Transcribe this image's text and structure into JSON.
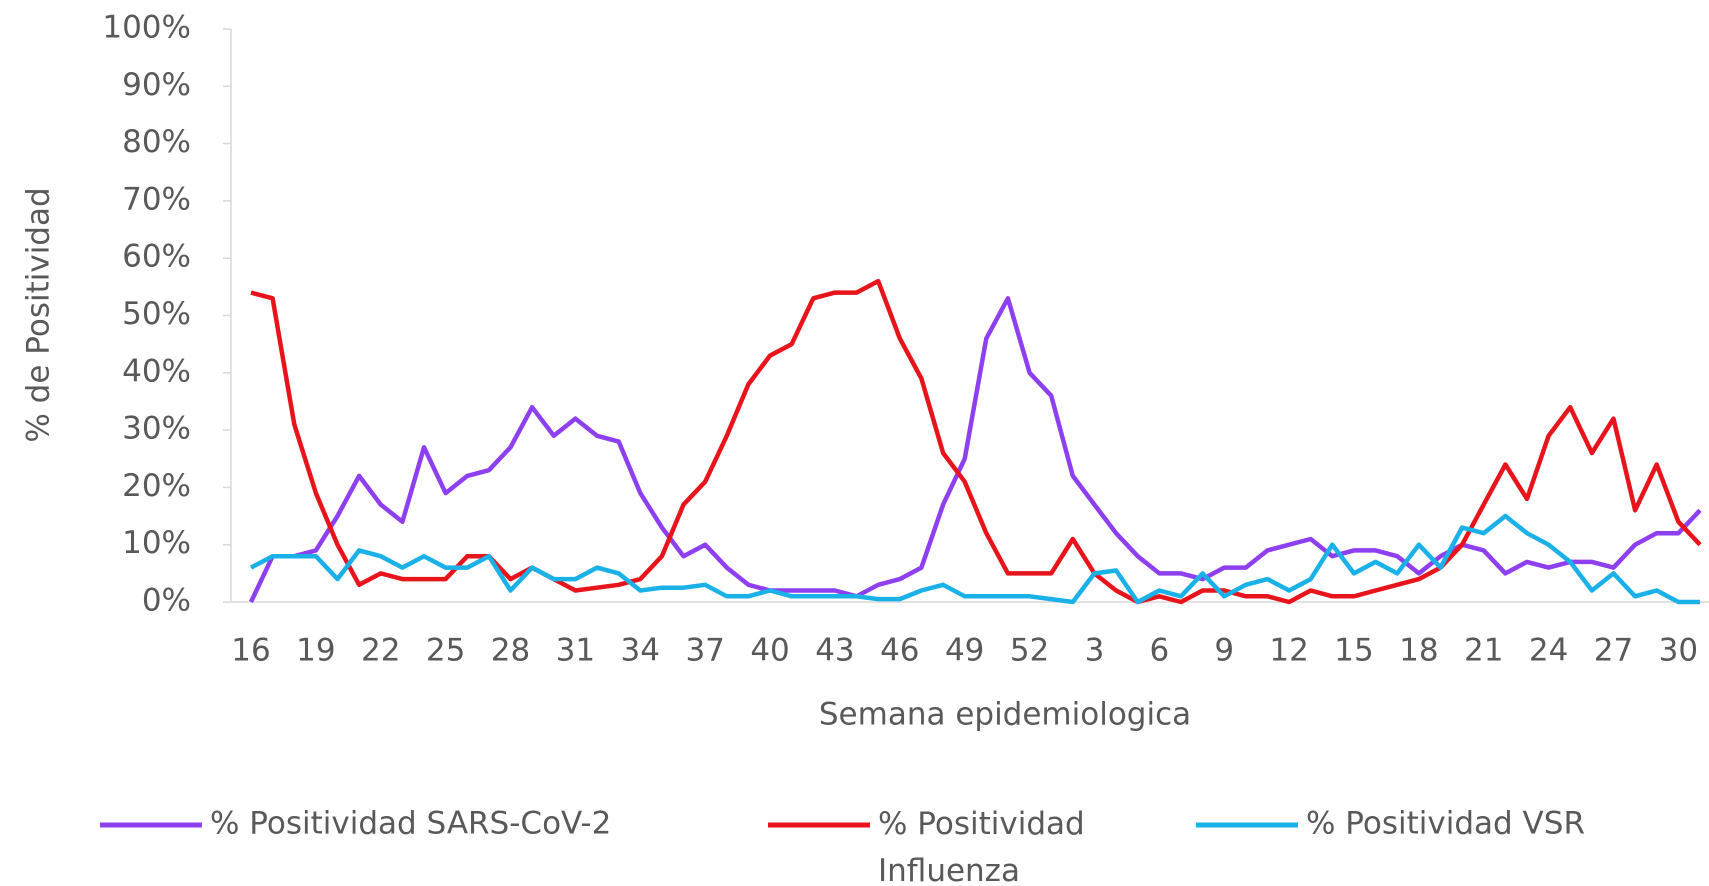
{
  "chart_data": {
    "type": "line",
    "y_label": "% de Positividad",
    "x_label": "Semana epidemiologica",
    "categories": [
      "16",
      null,
      null,
      "19",
      null,
      null,
      "22",
      null,
      null,
      "25",
      null,
      null,
      "28",
      null,
      null,
      "31",
      null,
      null,
      "34",
      null,
      null,
      "37",
      null,
      null,
      "40",
      null,
      null,
      "43",
      null,
      null,
      "46",
      null,
      null,
      "49",
      null,
      null,
      "52",
      null,
      null,
      "3",
      null,
      null,
      "6",
      null,
      null,
      "9",
      null,
      null,
      "12",
      null,
      null,
      "15",
      null,
      null,
      "18",
      null,
      null,
      "21",
      null,
      null,
      "24",
      null,
      null,
      "27",
      null,
      null,
      "30",
      null
    ],
    "series": [
      {
        "name": "% Positividad SARS-CoV-2",
        "color": "#8e3ff0",
        "values": [
          0,
          8,
          8,
          9,
          15,
          22,
          17,
          14,
          27,
          19,
          22,
          23,
          27,
          34,
          29,
          32,
          29,
          28,
          19,
          13,
          8,
          10,
          6,
          3,
          2,
          2,
          2,
          2,
          1,
          3,
          4,
          6,
          17,
          25,
          46,
          53,
          40,
          36,
          22,
          17,
          12,
          8,
          5,
          5,
          4,
          6,
          6,
          9,
          10,
          11,
          8,
          9,
          9,
          8,
          5,
          8,
          10,
          9,
          5,
          7,
          6,
          7,
          7,
          6,
          10,
          12,
          12,
          16
        ]
      },
      {
        "name": "% Positividad Influenza",
        "color": "#e8141c",
        "values": [
          54,
          53,
          31,
          19,
          10,
          3,
          5,
          4,
          4,
          4,
          8,
          8,
          4,
          6,
          4,
          2,
          2.5,
          3,
          4,
          8,
          17,
          21,
          29,
          38,
          43,
          45,
          53,
          54,
          54,
          56,
          46,
          39,
          26,
          21,
          12,
          5,
          5,
          5,
          11,
          5,
          2,
          0,
          1,
          0,
          2,
          2,
          1,
          1,
          0,
          2,
          1,
          1,
          2,
          3,
          4,
          6,
          10,
          17,
          24,
          18,
          29,
          34,
          26,
          32,
          16,
          24,
          14,
          10
        ]
      },
      {
        "name": "% Positividad VSR",
        "color": "#1ab0e8",
        "values": [
          6,
          8,
          8,
          8,
          4,
          9,
          8,
          6,
          8,
          6,
          6,
          8,
          2,
          6,
          4,
          4,
          6,
          5,
          2,
          2.5,
          2.5,
          3,
          1,
          1,
          2,
          1,
          1,
          1,
          1,
          0.5,
          0.5,
          2,
          3,
          1,
          1,
          1,
          1,
          0.5,
          0,
          5,
          5.5,
          0,
          2,
          1,
          5,
          1,
          3,
          4,
          2,
          4,
          10,
          5,
          7,
          5,
          10,
          6,
          13,
          12,
          15,
          12,
          10,
          7,
          2,
          5,
          1,
          2,
          0,
          0
        ]
      }
    ],
    "ylim": [
      0,
      100
    ],
    "yticks": [
      {
        "value": 0,
        "label": "0%"
      },
      {
        "value": 10,
        "label": "10%"
      },
      {
        "value": 20,
        "label": "20%"
      },
      {
        "value": 30,
        "label": "30%"
      },
      {
        "value": 40,
        "label": "40%"
      },
      {
        "value": 50,
        "label": "50%"
      },
      {
        "value": 60,
        "label": "60%"
      },
      {
        "value": 70,
        "label": "70%"
      },
      {
        "value": 80,
        "label": "80%"
      },
      {
        "value": 90,
        "label": "90%"
      },
      {
        "value": 100,
        "label": "100%"
      }
    ],
    "grid": false,
    "legend": "bottom"
  }
}
